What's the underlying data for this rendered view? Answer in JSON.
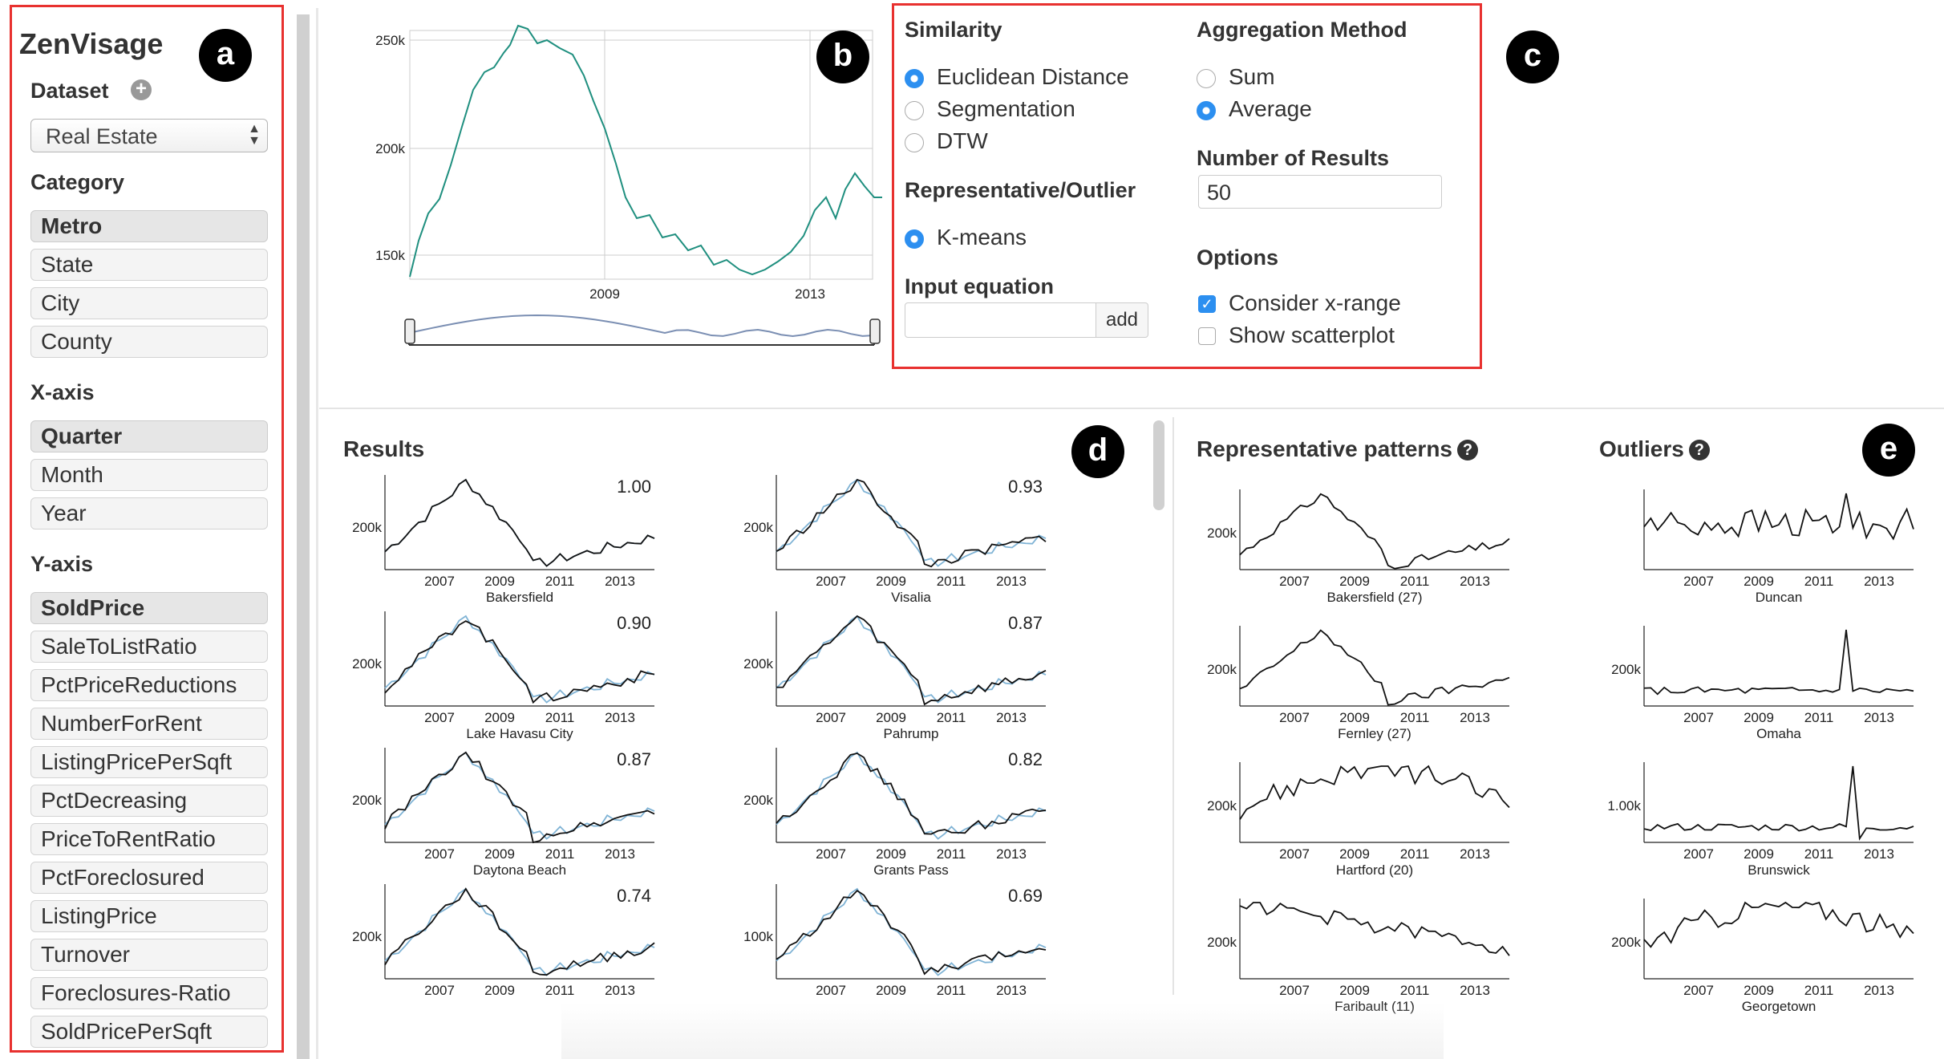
{
  "sidebar": {
    "app_title": "ZenVisage",
    "dataset_label": "Dataset",
    "dataset_value": "Real Estate",
    "category_label": "Category",
    "categories": [
      "Metro",
      "State",
      "City",
      "County"
    ],
    "xaxis_label": "X-axis",
    "xaxis_items": [
      "Quarter",
      "Month",
      "Year"
    ],
    "yaxis_label": "Y-axis",
    "yaxis_items": [
      "SoldPrice",
      "SaleToListRatio",
      "PctPriceReductions",
      "NumberForRent",
      "ListingPricePerSqft",
      "PctDecreasing",
      "PriceToRentRatio",
      "PctForeclosured",
      "ListingPrice",
      "Turnover",
      "Foreclosures-Ratio",
      "SoldPricePerSqft"
    ],
    "selected": {
      "category": "Metro",
      "xaxis": "Quarter",
      "yaxis": "SoldPrice"
    }
  },
  "badges": {
    "a": "a",
    "b": "b",
    "c": "c",
    "d": "d",
    "e": "e"
  },
  "sketch": {
    "y_ticks": [
      "250k",
      "200k",
      "150k"
    ],
    "x_ticks": [
      "2009",
      "2013"
    ],
    "line_color": "#1f8f7f"
  },
  "settings": {
    "similarity_label": "Similarity",
    "similarity_options": [
      "Euclidean Distance",
      "Segmentation",
      "DTW"
    ],
    "similarity_selected": "Euclidean Distance",
    "rep_label": "Representative/Outlier",
    "rep_options": [
      "K-means"
    ],
    "input_eq_label": "Input equation",
    "input_eq_value": "",
    "add_label": "add",
    "agg_label": "Aggregation Method",
    "agg_options": [
      "Sum",
      "Average"
    ],
    "agg_selected": "Average",
    "num_results_label": "Number of Results",
    "num_results_value": "50",
    "options_label": "Options",
    "options": [
      {
        "label": "Consider x-range",
        "checked": true
      },
      {
        "label": "Show scatterplot",
        "checked": false
      }
    ],
    "accent": "#2c8ff0"
  },
  "results": {
    "title": "Results",
    "x_ticks": [
      "2007",
      "2009",
      "2011",
      "2013"
    ],
    "items": [
      {
        "name": "Bakersfield",
        "score": "1.00",
        "y_tick": "200k"
      },
      {
        "name": "Visalia",
        "score": "0.93",
        "y_tick": "200k"
      },
      {
        "name": "Lake Havasu City",
        "score": "0.90",
        "y_tick": "200k"
      },
      {
        "name": "Pahrump",
        "score": "0.87",
        "y_tick": "200k"
      },
      {
        "name": "Daytona Beach",
        "score": "0.87",
        "y_tick": "200k"
      },
      {
        "name": "Grants Pass",
        "score": "0.82",
        "y_tick": "200k"
      },
      {
        "name": "",
        "score": "0.74",
        "y_tick": "200k"
      },
      {
        "name": "",
        "score": "0.69",
        "y_tick": "100k"
      }
    ]
  },
  "representative": {
    "title": "Representative patterns",
    "items": [
      {
        "name": "Bakersfield (27)",
        "y_tick": "200k"
      },
      {
        "name": "Fernley (27)",
        "y_tick": "200k"
      },
      {
        "name": "Hartford (20)",
        "y_tick": "200k"
      },
      {
        "name": "Faribault (11)",
        "y_tick": "200k"
      }
    ]
  },
  "outliers": {
    "title": "Outliers",
    "items": [
      {
        "name": "Duncan",
        "y_tick": ""
      },
      {
        "name": "Omaha",
        "y_tick": "200k"
      },
      {
        "name": "Brunswick",
        "y_tick": "1.00k"
      },
      {
        "name": "Georgetown",
        "y_tick": "200k"
      }
    ]
  }
}
